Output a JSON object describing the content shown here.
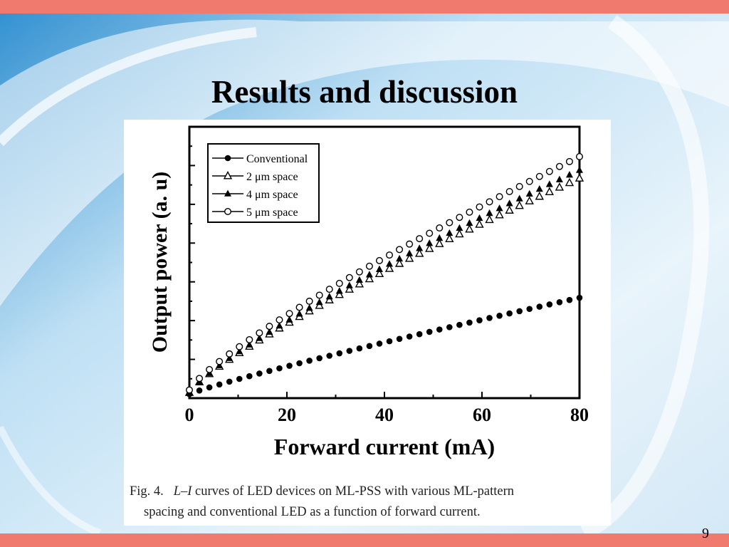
{
  "slide": {
    "title": "Results and discussion",
    "page_number": "9",
    "accent_color": "#f07a6e"
  },
  "caption": {
    "fig_label": "Fig. 4.",
    "li": "L–I",
    "line1_rest": " curves of LED devices on ML-PSS with various ML-pattern",
    "line2": "spacing and conventional LED as a function of forward current."
  },
  "chart_data": {
    "type": "scatter",
    "xlabel": "Forward current (mA)",
    "ylabel": "Output power (a. u)",
    "xlim": [
      0,
      80
    ],
    "ylim": [
      0,
      1
    ],
    "x_ticks": [
      "0",
      "20",
      "40",
      "60",
      "80"
    ],
    "y_tick_labels_shown": false,
    "legend_position": "top-left",
    "grid": false,
    "series": [
      {
        "name": "Conventional",
        "marker": "filled-circle",
        "x_start": 0,
        "x_end": 80,
        "points": 40,
        "y_start": 0.015,
        "y_end": 0.37,
        "shape": 0.9
      },
      {
        "name": "2 μm space",
        "marker": "open-triangle",
        "x_start": 0,
        "x_end": 80,
        "points": 40,
        "y_start": 0.02,
        "y_end": 0.81,
        "shape": 0.82
      },
      {
        "name": "4 μm space",
        "marker": "filled-triangle",
        "x_start": 0,
        "x_end": 80,
        "points": 40,
        "y_start": 0.02,
        "y_end": 0.84,
        "shape": 0.82
      },
      {
        "name": "5 μm space",
        "marker": "open-circle",
        "x_start": 0,
        "x_end": 80,
        "points": 40,
        "y_start": 0.03,
        "y_end": 0.89,
        "shape": 0.82
      }
    ]
  }
}
